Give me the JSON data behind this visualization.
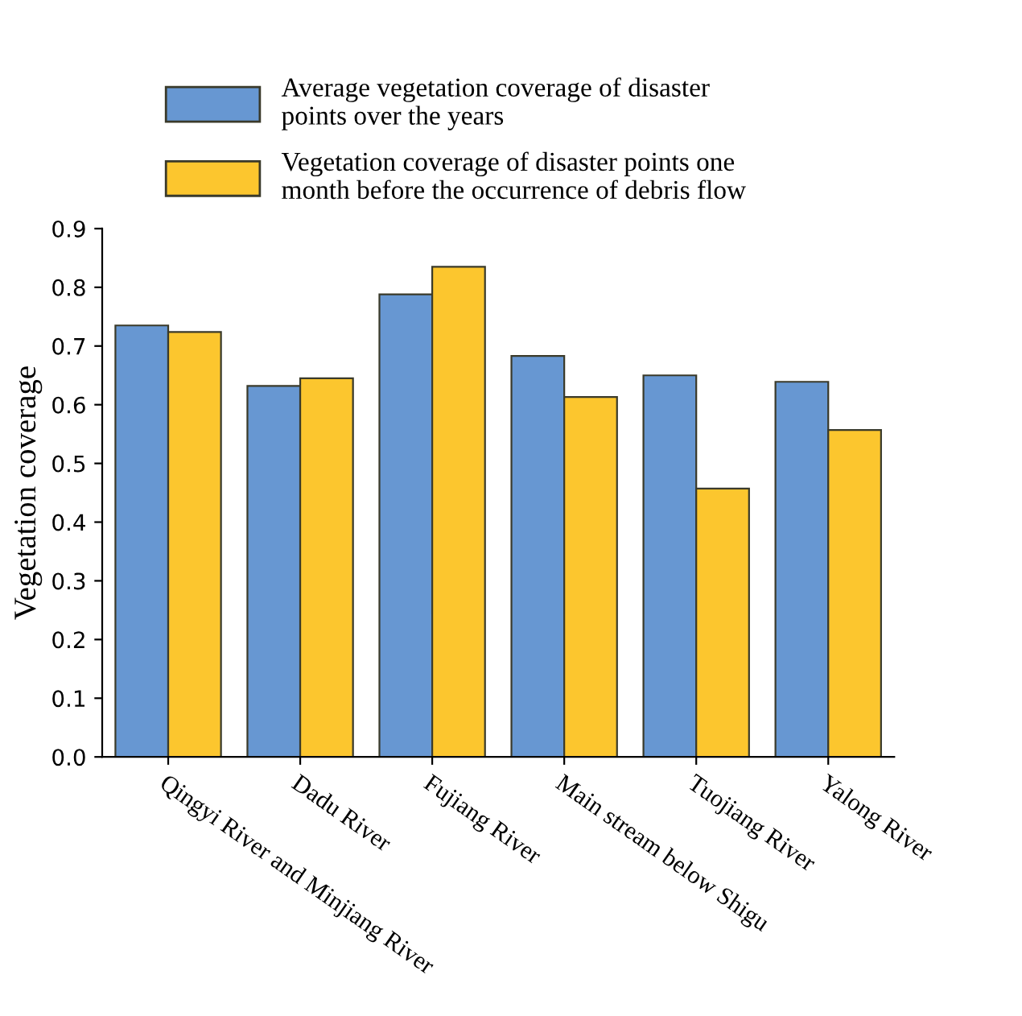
{
  "chart_data": {
    "type": "bar",
    "ylabel": "Vegetation coverage",
    "categories": [
      "Qingyi River and Minjiang River",
      "Dadu River",
      "Fujiang River",
      "Main stream below Shigu",
      "Tuojiang River",
      "Yalong River"
    ],
    "series": [
      {
        "name": "Average vegetation coverage of disaster\npoints over the years",
        "color": "#6797d2",
        "values": [
          0.735,
          0.632,
          0.788,
          0.683,
          0.65,
          0.639
        ]
      },
      {
        "name": "Vegetation coverage of disaster points one\nmonth before the occurrence of debris flow",
        "color": "#fcc62e",
        "values": [
          0.724,
          0.645,
          0.835,
          0.613,
          0.457,
          0.557
        ]
      }
    ],
    "ylim": [
      0,
      0.9
    ],
    "yticks": [
      {
        "value": 0,
        "label": "0.0"
      },
      0.1,
      0.2,
      0.3,
      0.4,
      0.5,
      0.6,
      0.7,
      0.8,
      0.9
    ],
    "grid": false,
    "legend": "top"
  }
}
